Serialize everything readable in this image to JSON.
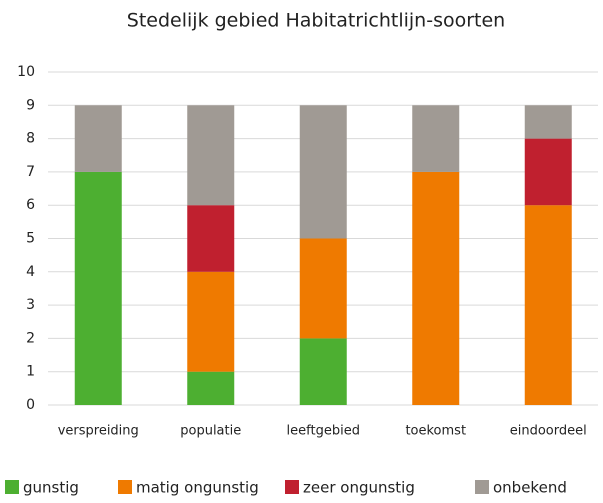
{
  "chart_data": {
    "type": "stacked_bar",
    "title": "Stedelijk gebied Habitatrichtlijn-soorten",
    "categories": [
      "verspreiding",
      "populatie",
      "leeftgebied",
      "toekomst",
      "eindoordeel"
    ],
    "series": [
      {
        "name": "gunstig",
        "color": "#4daf31",
        "values": [
          7,
          1,
          2,
          0,
          0
        ]
      },
      {
        "name": "matig ongunstig",
        "color": "#ef7a00",
        "values": [
          0,
          3,
          3,
          7,
          6
        ]
      },
      {
        "name": "zeer ongunstig",
        "color": "#c0202f",
        "values": [
          0,
          2,
          0,
          0,
          2
        ]
      },
      {
        "name": "onbekend",
        "color": "#a09a94",
        "values": [
          2,
          3,
          4,
          2,
          1
        ]
      }
    ],
    "ylim": [
      0,
      10
    ],
    "yticks": [
      0,
      1,
      2,
      3,
      4,
      5,
      6,
      7,
      8,
      9,
      10
    ],
    "grid": true,
    "legend": "bottom"
  }
}
